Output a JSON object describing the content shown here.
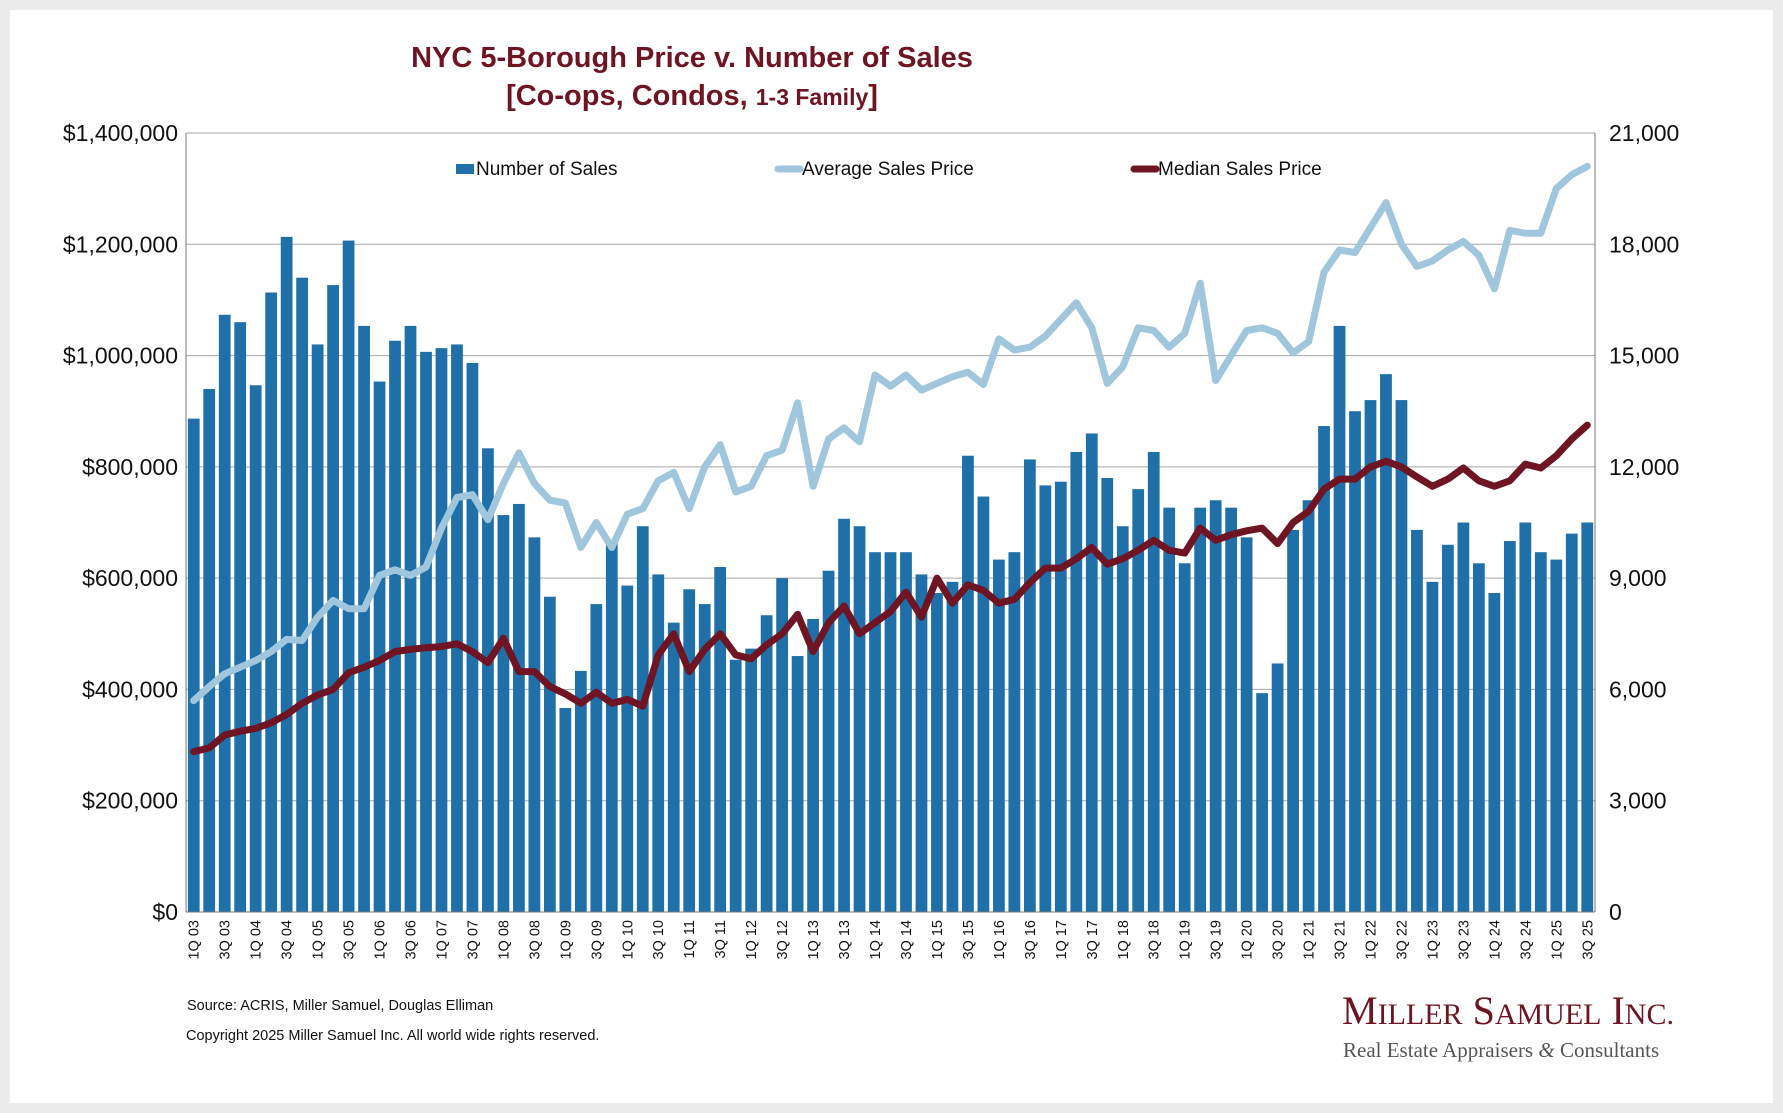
{
  "chart_data": {
    "type": "bar+line",
    "title": "NYC 5-Borough Price v. Number of Sales",
    "subtitle_main": "[Co-ops, Condos, ",
    "subtitle_small": "1-3 Family",
    "subtitle_end": "]",
    "y_left": {
      "min": 0,
      "max": 1400000,
      "ticks": [
        0,
        200000,
        400000,
        600000,
        800000,
        1000000,
        1200000,
        1400000
      ],
      "tick_labels": [
        "$0",
        "$200,000",
        "$400,000",
        "$600,000",
        "$800,000",
        "$1,000,000",
        "$1,200,000",
        "$1,400,000"
      ]
    },
    "y_right": {
      "min": 0,
      "max": 21000,
      "ticks": [
        0,
        3000,
        6000,
        9000,
        12000,
        15000,
        18000,
        21000
      ],
      "tick_labels": [
        "0",
        "3,000",
        "6,000",
        "9,000",
        "12,000",
        "15,000",
        "18,000",
        "21,000"
      ]
    },
    "grid": true,
    "legend_position": "top-center",
    "categories": [
      "1Q 03",
      "2Q 03",
      "3Q 03",
      "4Q 03",
      "1Q 04",
      "2Q 04",
      "3Q 04",
      "4Q 04",
      "1Q 05",
      "2Q 05",
      "3Q 05",
      "4Q 05",
      "1Q 06",
      "2Q 06",
      "3Q 06",
      "4Q 06",
      "1Q 07",
      "2Q 07",
      "3Q 07",
      "4Q 07",
      "1Q 08",
      "2Q 08",
      "3Q 08",
      "4Q 08",
      "1Q 09",
      "2Q 09",
      "3Q 09",
      "4Q 09",
      "1Q 10",
      "2Q 10",
      "3Q 10",
      "4Q 10",
      "1Q 11",
      "2Q 11",
      "3Q 11",
      "4Q 11",
      "1Q 12",
      "2Q 12",
      "3Q 12",
      "4Q 12",
      "1Q 13",
      "2Q 13",
      "3Q 13",
      "4Q 13",
      "1Q 14",
      "2Q 14",
      "3Q 14",
      "4Q 14",
      "1Q 15",
      "2Q 15",
      "3Q 15",
      "4Q 15",
      "1Q 16",
      "2Q 16",
      "3Q 16",
      "4Q 16",
      "1Q 17",
      "2Q 17",
      "3Q 17",
      "4Q 17",
      "1Q 18",
      "2Q 18",
      "3Q 18",
      "4Q 18",
      "1Q 19",
      "2Q 19",
      "3Q 19",
      "4Q 19",
      "1Q 20",
      "2Q 20",
      "3Q 20",
      "4Q 20",
      "1Q 21",
      "2Q 21",
      "3Q 21",
      "4Q 21",
      "1Q 22",
      "2Q 22",
      "3Q 22",
      "4Q 22",
      "1Q 23",
      "2Q 23",
      "3Q 23",
      "4Q 23",
      "1Q 24",
      "2Q 24",
      "3Q 24",
      "4Q 24",
      "1Q 25",
      "2Q 25",
      "3Q 25"
    ],
    "x_tick_labels": [
      "1Q 03",
      "3Q 03",
      "1Q 04",
      "3Q 04",
      "1Q 05",
      "3Q 05",
      "1Q 06",
      "3Q 06",
      "1Q 07",
      "3Q 07",
      "1Q 08",
      "3Q 08",
      "1Q 09",
      "3Q 09",
      "1Q 10",
      "3Q 10",
      "1Q 11",
      "3Q 11",
      "1Q 12",
      "3Q 12",
      "1Q 13",
      "3Q 13",
      "1Q 14",
      "3Q 14",
      "1Q 15",
      "3Q 15",
      "1Q 16",
      "3Q 16",
      "1Q 17",
      "3Q 17",
      "1Q 18",
      "3Q 18",
      "1Q 19",
      "3Q 19",
      "1Q 20",
      "3Q 20",
      "1Q 21",
      "3Q 21",
      "1Q 22",
      "3Q 22",
      "1Q 23",
      "3Q 23",
      "1Q 24",
      "3Q 24",
      "1Q 25",
      "3Q 25"
    ],
    "series": [
      {
        "name": "Number of Sales",
        "type": "bar",
        "axis": "right",
        "color": "#1f6fa8",
        "values": [
          13300,
          14100,
          16100,
          15900,
          14200,
          16700,
          18200,
          17100,
          15300,
          16900,
          18100,
          15800,
          14300,
          15400,
          15800,
          15100,
          15200,
          15300,
          14800,
          12500,
          10700,
          11000,
          10100,
          8500,
          5500,
          6500,
          8300,
          10000,
          8800,
          10400,
          9100,
          7800,
          8700,
          8300,
          9300,
          6800,
          7100,
          8000,
          9000,
          6900,
          7900,
          9200,
          10600,
          10400,
          9700,
          9700,
          9700,
          9100,
          8600,
          8900,
          12300,
          11200,
          9500,
          9700,
          12200,
          11500,
          11600,
          12400,
          12900,
          11700,
          10400,
          11400,
          12400,
          10900,
          9400,
          10900,
          11100,
          10900,
          10100,
          5900,
          6700,
          10300,
          11100,
          13100,
          15800,
          13500,
          13800,
          14500,
          13800,
          10300,
          8900,
          9900,
          10500,
          9400,
          8600,
          10000,
          10500,
          9700,
          9500,
          10200,
          10500
        ]
      },
      {
        "name": "Average Sales Price",
        "type": "line",
        "axis": "left",
        "color": "#9fc6dd",
        "values": [
          380000,
          405000,
          428000,
          440000,
          452000,
          468000,
          490000,
          488000,
          530000,
          560000,
          545000,
          545000,
          605000,
          615000,
          605000,
          620000,
          690000,
          745000,
          750000,
          705000,
          770000,
          825000,
          770000,
          740000,
          735000,
          655000,
          700000,
          655000,
          715000,
          725000,
          775000,
          790000,
          725000,
          800000,
          840000,
          755000,
          765000,
          820000,
          830000,
          915000,
          765000,
          850000,
          870000,
          845000,
          965000,
          945000,
          965000,
          938000,
          950000,
          962000,
          970000,
          948000,
          1030000,
          1010000,
          1015000,
          1035000,
          1065000,
          1095000,
          1050000,
          950000,
          980000,
          1050000,
          1045000,
          1015000,
          1040000,
          1130000,
          955000,
          1000000,
          1045000,
          1050000,
          1040000,
          1005000,
          1025000,
          1150000,
          1190000,
          1185000,
          1230000,
          1275000,
          1200000,
          1160000,
          1170000,
          1190000,
          1205000,
          1180000,
          1120000,
          1225000,
          1220000,
          1220000,
          1300000,
          1325000,
          1340000
        ]
      },
      {
        "name": "Median Sales Price",
        "type": "line",
        "axis": "left",
        "color": "#6e1423",
        "values": [
          288000,
          295000,
          318000,
          325000,
          330000,
          340000,
          355000,
          375000,
          390000,
          400000,
          430000,
          440000,
          452000,
          468000,
          472000,
          475000,
          477000,
          482000,
          468000,
          448000,
          492000,
          432000,
          432000,
          405000,
          392000,
          375000,
          395000,
          375000,
          382000,
          370000,
          462000,
          500000,
          432000,
          472000,
          500000,
          462000,
          455000,
          480000,
          500000,
          535000,
          468000,
          520000,
          550000,
          500000,
          520000,
          540000,
          575000,
          530000,
          600000,
          555000,
          588000,
          578000,
          555000,
          562000,
          592000,
          618000,
          618000,
          635000,
          655000,
          625000,
          635000,
          650000,
          668000,
          650000,
          645000,
          690000,
          668000,
          678000,
          685000,
          690000,
          662000,
          700000,
          720000,
          760000,
          778000,
          778000,
          800000,
          810000,
          800000,
          782000,
          765000,
          778000,
          798000,
          775000,
          765000,
          775000,
          805000,
          798000,
          820000,
          850000,
          875000
        ]
      }
    ],
    "source": "Source: ACRIS, Miller Samuel, Douglas Elliman",
    "copyright": "Copyright 2025 Miller Samuel Inc.  All world wide rights reserved."
  },
  "logo": {
    "name_first_initial": "M",
    "name_first_rest": "ILLER",
    "name_second_initial": "S",
    "name_second_rest": "AMUEL",
    "name_third_initial": "I",
    "name_third_rest": "NC.",
    "tagline_before": "Real Estate Appraisers ",
    "tagline_amp": "&",
    "tagline_after": " Consultants"
  },
  "colors": {
    "title": "#6e1423",
    "bar": "#1f6fa8",
    "average_line": "#9fc6dd",
    "median_line": "#6e1423",
    "grid": "#a6a6a6"
  }
}
